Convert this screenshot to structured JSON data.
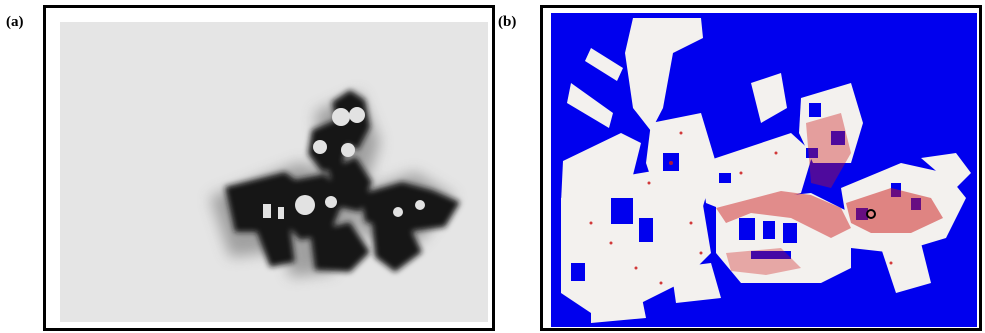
{
  "labels": {
    "a": "(a)",
    "b": "(b)"
  },
  "colors": {
    "panel_a_background": "#e5e5e5",
    "panel_a_obstacles": "#101010",
    "panel_b_background": "#0000ee",
    "panel_b_free_space": "#f3f1ee",
    "panel_b_particles": "#cc1a1a",
    "panel_b_robot": "#000000"
  }
}
